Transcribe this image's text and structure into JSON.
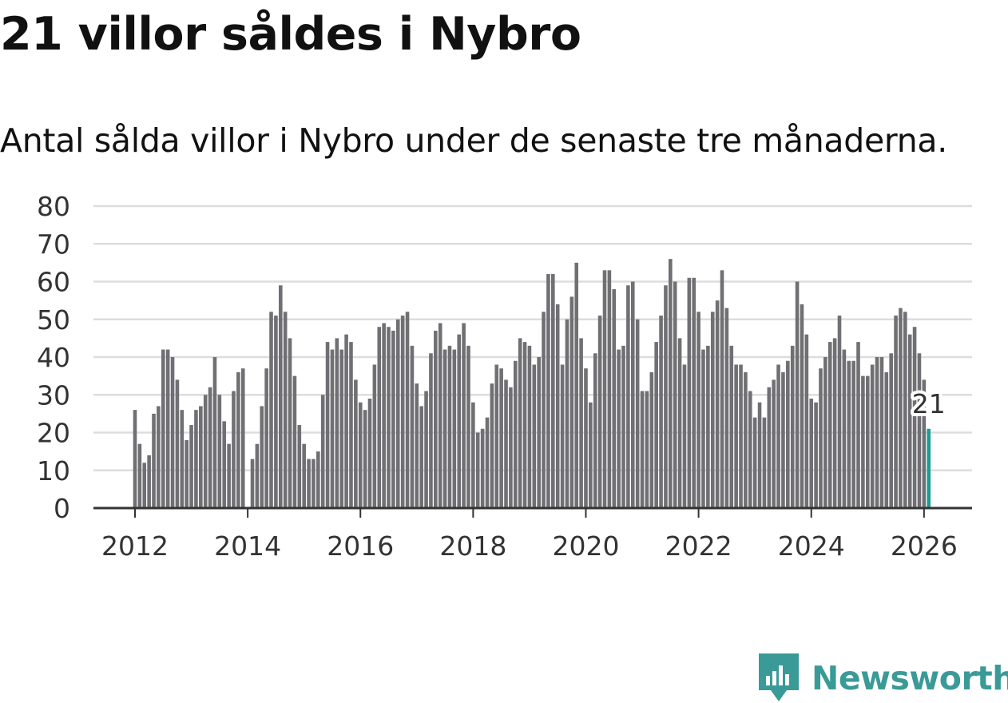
{
  "title": "21 villor såldes i Nybro",
  "subtitle": "Antal sålda villor i Nybro under de senaste tre månaderna.",
  "brand": "Newsworthy",
  "colors": {
    "bar": "#707074",
    "highlight": "#1a9d93",
    "grid": "#dddddd",
    "axis": "#333333",
    "brand": "#3a9a98"
  },
  "chart_data": {
    "type": "bar",
    "title": "21 villor såldes i Nybro",
    "xlabel": "",
    "ylabel": "",
    "ylim": [
      0,
      80
    ],
    "yticks": [
      0,
      10,
      20,
      30,
      40,
      50,
      60,
      70,
      80
    ],
    "xtick_labels": [
      "2012",
      "2014",
      "2016",
      "2018",
      "2020",
      "2022",
      "2024",
      "2026"
    ],
    "start": "2012-01",
    "end": "2026-02",
    "x_period": "month",
    "highlight_label": "21",
    "values": [
      26,
      17,
      12,
      14,
      25,
      27,
      42,
      42,
      40,
      34,
      26,
      18,
      22,
      26,
      27,
      30,
      32,
      40,
      30,
      23,
      17,
      31,
      36,
      37,
      null,
      13,
      17,
      27,
      37,
      52,
      51,
      59,
      52,
      45,
      35,
      22,
      17,
      13,
      13,
      15,
      30,
      44,
      42,
      45,
      42,
      46,
      44,
      34,
      28,
      26,
      29,
      38,
      48,
      49,
      48,
      47,
      50,
      51,
      52,
      43,
      33,
      27,
      31,
      41,
      47,
      49,
      42,
      43,
      42,
      46,
      49,
      43,
      28,
      20,
      21,
      24,
      33,
      38,
      37,
      34,
      32,
      39,
      45,
      44,
      43,
      38,
      40,
      52,
      62,
      62,
      54,
      38,
      50,
      56,
      65,
      45,
      37,
      28,
      41,
      51,
      63,
      63,
      58,
      42,
      43,
      59,
      60,
      50,
      31,
      31,
      36,
      44,
      51,
      59,
      66,
      60,
      45,
      38,
      61,
      61,
      52,
      42,
      43,
      52,
      55,
      63,
      53,
      43,
      38,
      38,
      36,
      31,
      24,
      28,
      24,
      32,
      34,
      38,
      36,
      39,
      43,
      60,
      54,
      46,
      29,
      28,
      37,
      40,
      44,
      45,
      51,
      42,
      39,
      39,
      44,
      35,
      35,
      38,
      40,
      40,
      36,
      41,
      51,
      53,
      52,
      46,
      48,
      41,
      34,
      21
    ]
  }
}
